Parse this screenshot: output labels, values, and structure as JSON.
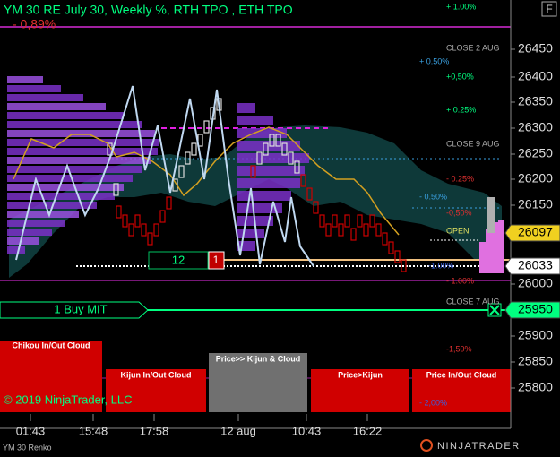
{
  "header": {
    "title": "YM 30 RE July 30, Weekly %, RTH TPO , ETH TPO",
    "change": "- 0,89%",
    "button": "F"
  },
  "levels": [
    "+ 1.00%",
    "CLOSE 2 AUG",
    "+ 0.50%",
    "+0,50%",
    "+ 0.25%",
    "CLOSE 9 AUG",
    "- 0.25%",
    "- 0.50%",
    "-0,50%",
    "OPEN",
    "-1.00%",
    "- 1.00%",
    "CLOSE 7 AUG",
    "-1,50%",
    "- 2,00%"
  ],
  "price_axis": [
    "26450",
    "26400",
    "26350",
    "26300",
    "26250",
    "26200",
    "26150",
    "26000",
    "25900",
    "25850",
    "25800"
  ],
  "price_markers": [
    "26097",
    "26033",
    "25950"
  ],
  "order": {
    "quantity": "12",
    "count": "1",
    "label": "1 Buy MIT"
  },
  "panels": [
    "Chikou In/Out Cloud",
    "Kijun In/Out Cloud",
    "Price>> Kijun & Cloud",
    "Price>Kijun",
    "Price In/Out Cloud"
  ],
  "copyright": "© 2019 NinjaTrader, LLC",
  "time_axis": [
    "01:43",
    "15:48",
    "17:58",
    "12 aug",
    "10:43",
    "16:22"
  ],
  "instrument": "YM 30 Renko",
  "logo": "NINJATRADER"
}
